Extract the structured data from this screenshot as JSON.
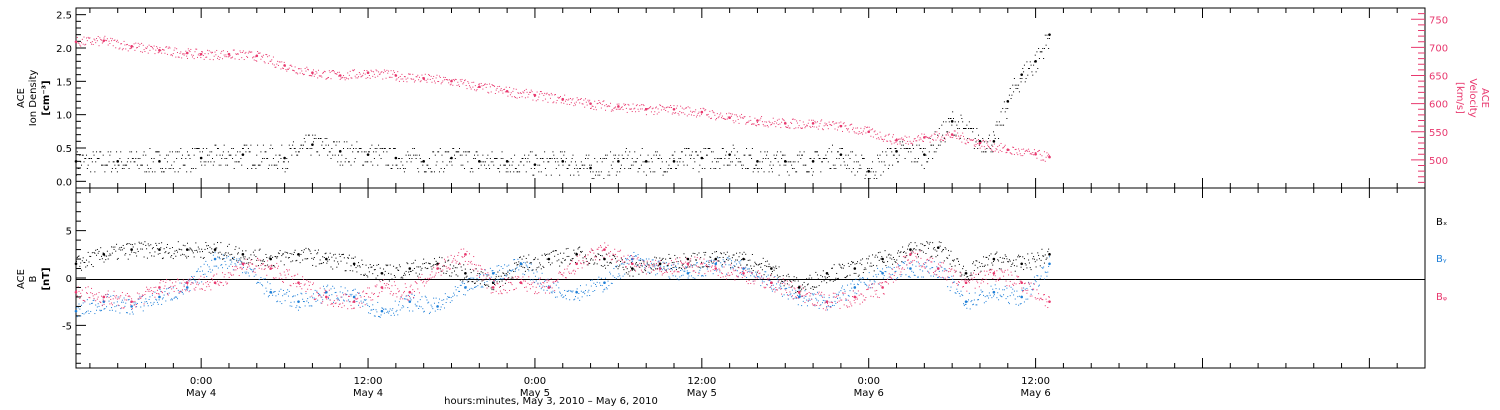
{
  "colors": {
    "density": "#000000",
    "velocity": "#e8386e",
    "bx": "#000000",
    "by": "#1e7fd8",
    "bz": "#e8386e",
    "axis": "#000000"
  },
  "chart_data": [
    {
      "type": "scatter",
      "panel": "plasma",
      "ylabel": {
        "line1": "ACE",
        "line2": "Ion Density",
        "line3": "[cm⁻³]"
      },
      "ylabel_right": {
        "line1": "ACE",
        "line2": "Velocity",
        "line3": "[km/s]"
      },
      "ylim": [
        -0.1,
        2.6
      ],
      "yticks": [
        "0.0",
        "0.5",
        "1.0",
        "1.5",
        "2.0",
        "2.5"
      ],
      "ylim_right": [
        450,
        770
      ],
      "yticks_right": [
        "500",
        "550",
        "600",
        "650",
        "700",
        "750"
      ],
      "x_hours_range": [
        -9,
        88
      ],
      "data_end_hour": 61,
      "series": [
        {
          "key": "density",
          "axis": "left",
          "x": [
            -9,
            -6,
            -3,
            0,
            3,
            6,
            8,
            10,
            12,
            14,
            16,
            18,
            20,
            22,
            24,
            26,
            28,
            30,
            32,
            34,
            36,
            38,
            40,
            42,
            44,
            46,
            48,
            50,
            52,
            54,
            56,
            57,
            58,
            59,
            60,
            61
          ],
          "values": [
            0.3,
            0.3,
            0.3,
            0.35,
            0.4,
            0.35,
            0.55,
            0.45,
            0.4,
            0.35,
            0.3,
            0.35,
            0.3,
            0.3,
            0.25,
            0.3,
            0.2,
            0.3,
            0.3,
            0.3,
            0.35,
            0.4,
            0.3,
            0.3,
            0.3,
            0.4,
            0.15,
            0.45,
            0.4,
            0.9,
            0.6,
            0.6,
            1.2,
            1.6,
            1.8,
            2.2
          ]
        },
        {
          "key": "velocity",
          "axis": "right",
          "x": [
            -9,
            -7,
            -5,
            -3,
            -1,
            0,
            2,
            4,
            6,
            8,
            10,
            12,
            14,
            16,
            18,
            20,
            22,
            24,
            26,
            28,
            30,
            32,
            34,
            36,
            38,
            40,
            42,
            44,
            46,
            48,
            50,
            52,
            54,
            56,
            58,
            60,
            61
          ],
          "values": [
            710,
            712,
            702,
            695,
            690,
            688,
            688,
            685,
            668,
            655,
            650,
            655,
            650,
            645,
            640,
            630,
            622,
            615,
            608,
            600,
            595,
            590,
            590,
            585,
            575,
            570,
            565,
            565,
            560,
            550,
            535,
            540,
            545,
            530,
            518,
            510,
            505
          ]
        }
      ]
    },
    {
      "type": "scatter",
      "panel": "magnetic",
      "ylabel": {
        "line1": "ACE",
        "line2": "B",
        "line3": "[nT]"
      },
      "ylim": [
        -9.5,
        9.5
      ],
      "yticks": [
        "-5",
        "0",
        "5"
      ],
      "x_hours_range": [
        -9,
        88
      ],
      "data_end_hour": 61,
      "legend": [
        "Bₓ",
        "Bᵧ",
        "Bᵩ"
      ],
      "series": [
        {
          "key": "bx",
          "x": [
            -9,
            -7,
            -5,
            -3,
            -1,
            1,
            3,
            5,
            7,
            9,
            11,
            13,
            15,
            17,
            19,
            21,
            23,
            25,
            27,
            29,
            31,
            33,
            35,
            37,
            39,
            41,
            43,
            45,
            47,
            49,
            51,
            53,
            55,
            57,
            59,
            61
          ],
          "values": [
            1.5,
            2.5,
            3.0,
            3.0,
            3.0,
            3.0,
            2.5,
            2.0,
            2.5,
            2.0,
            1.5,
            0.5,
            1.0,
            1.5,
            0.5,
            -0.5,
            1.5,
            2.0,
            2.5,
            2.0,
            1.0,
            1.5,
            2.0,
            2.0,
            2.0,
            1.0,
            -1.0,
            0.5,
            1.0,
            2.0,
            3.0,
            3.2,
            0.5,
            2.0,
            1.5,
            2.5
          ]
        },
        {
          "key": "by",
          "x": [
            -9,
            -7,
            -5,
            -3,
            -1,
            1,
            3,
            5,
            7,
            9,
            11,
            13,
            15,
            17,
            19,
            21,
            23,
            25,
            27,
            29,
            31,
            33,
            35,
            37,
            39,
            41,
            43,
            45,
            47,
            49,
            51,
            53,
            55,
            57,
            59,
            61
          ],
          "values": [
            -3.5,
            -2.5,
            -3.0,
            -2.0,
            -1.0,
            2.0,
            1.5,
            -1.5,
            -2.5,
            -1.5,
            -2.0,
            -3.5,
            -2.5,
            -3.0,
            -1.0,
            0.5,
            1.5,
            -1.0,
            -1.5,
            -0.5,
            2.0,
            1.0,
            0.5,
            1.5,
            1.0,
            -0.5,
            -2.0,
            -2.5,
            -1.0,
            0.5,
            1.0,
            1.0,
            -2.5,
            -1.5,
            -2.0,
            1.5
          ]
        },
        {
          "key": "bz",
          "x": [
            -9,
            -7,
            -5,
            -3,
            -1,
            1,
            3,
            5,
            7,
            9,
            11,
            13,
            15,
            17,
            19,
            21,
            23,
            25,
            27,
            29,
            31,
            33,
            35,
            37,
            39,
            41,
            43,
            45,
            47,
            49,
            51,
            53,
            55,
            57,
            59,
            61
          ],
          "values": [
            -1.5,
            -2.0,
            -2.5,
            -1.0,
            -0.5,
            -0.5,
            1.5,
            1.0,
            -0.5,
            -2.0,
            -2.5,
            -1.0,
            -1.5,
            1.0,
            2.5,
            -1.0,
            -0.5,
            -1.0,
            1.5,
            3.0,
            1.5,
            1.0,
            1.5,
            1.0,
            0.5,
            -0.5,
            -1.5,
            -2.5,
            -2.0,
            -1.0,
            2.5,
            1.0,
            -0.5,
            0.5,
            -0.5,
            -2.5
          ]
        }
      ]
    }
  ],
  "x_axis": {
    "ticks": [
      {
        "hours": 0,
        "time": "0:00",
        "date": "May 4"
      },
      {
        "hours": 12,
        "time": "12:00",
        "date": "May 4"
      },
      {
        "hours": 24,
        "time": "0:00",
        "date": "May 5"
      },
      {
        "hours": 36,
        "time": "12:00",
        "date": "May 5"
      },
      {
        "hours": 48,
        "time": "0:00",
        "date": "May 6"
      },
      {
        "hours": 60,
        "time": "12:00",
        "date": "May 6"
      }
    ],
    "caption": "hours:minutes, May  3, 2010 – May  6, 2010"
  },
  "legend_labels": {
    "bx": "Bₓ",
    "by": "Bᵧ",
    "bz": "Bᵩ"
  }
}
